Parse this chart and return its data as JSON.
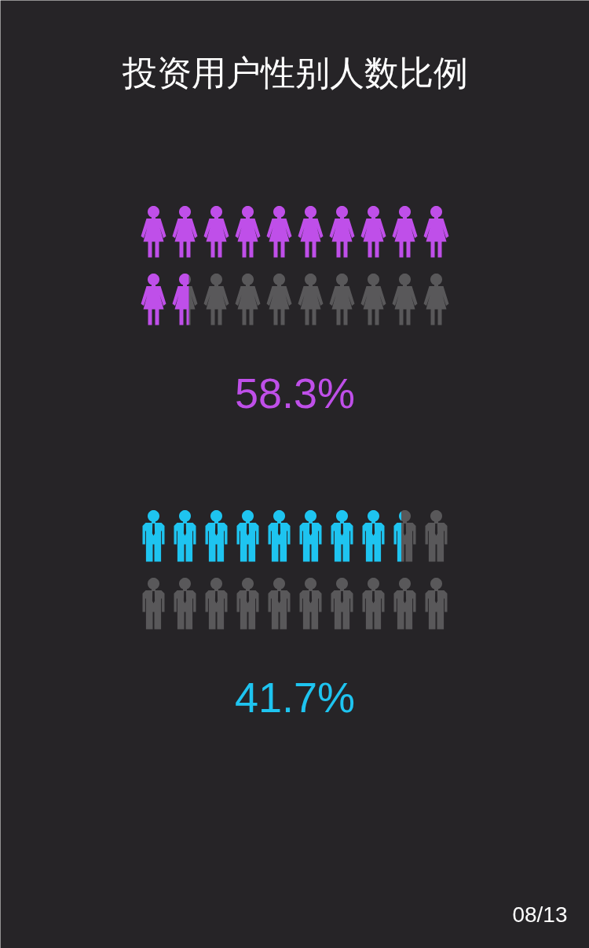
{
  "chart_data": {
    "type": "other",
    "title": "投资用户性别人数比例",
    "categories": [
      null,
      null
    ],
    "values": [
      58.3,
      41.7
    ],
    "colors": [
      "#bf4fe9",
      "#1ec4f0"
    ],
    "value_labels": [
      "58.3%",
      "41.7%"
    ],
    "annotations": [
      "08/13"
    ]
  }
}
